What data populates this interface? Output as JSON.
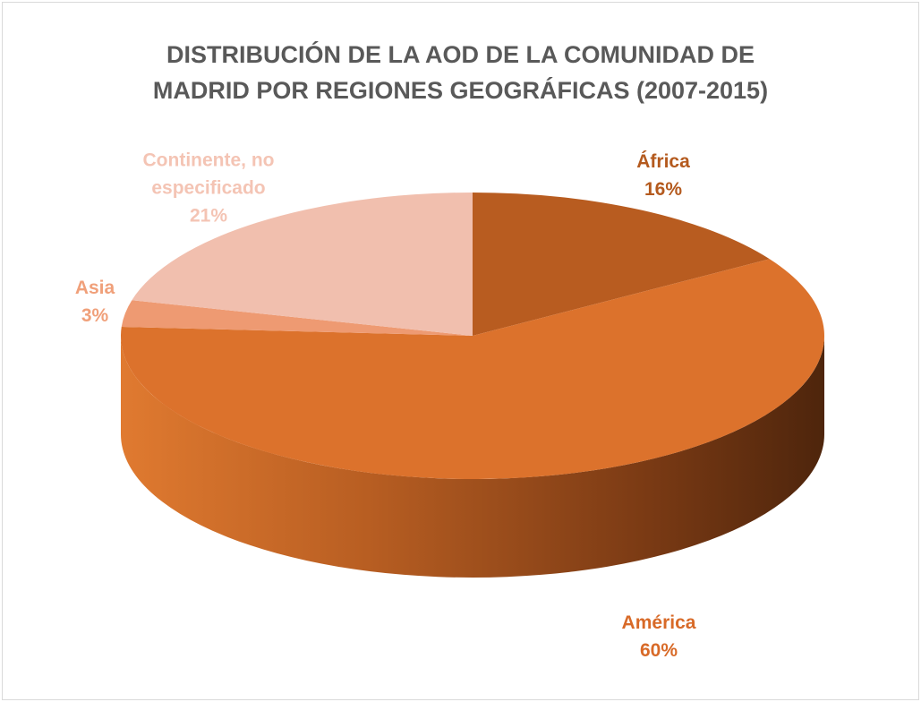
{
  "chart_data": {
    "type": "pie",
    "title": "DISTRIBUCIÓN DE LA AOD DE LA COMUNIDAD DE MADRID POR REGIONES GEOGRÁFICAS (2007-2015)",
    "categories": [
      "África",
      "América",
      "Asia",
      "Continente, no especificado"
    ],
    "values": [
      16,
      60,
      3,
      21
    ],
    "value_labels": [
      "16%",
      "60%",
      "3%",
      "21%"
    ],
    "colors": [
      "#b85c20",
      "#dc722c",
      "#ee9a72",
      "#f1bfae"
    ],
    "label_colors": [
      "#b45a1e",
      "#d86a28",
      "#f0a07a",
      "#f4c4b4"
    ]
  }
}
